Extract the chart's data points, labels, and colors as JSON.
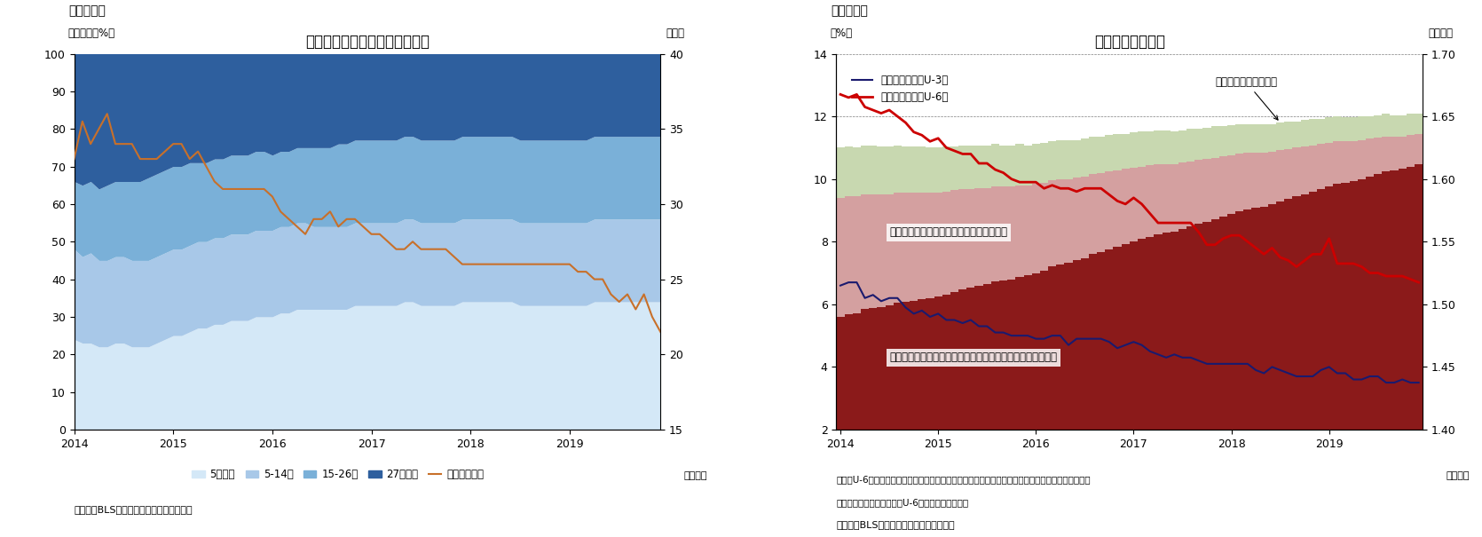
{
  "fig7": {
    "title": "失業期間の分布と平均失業期間",
    "ylabel_left": "（シェア、%）",
    "ylabel_right": "（週）",
    "xlabel": "（月次）",
    "header": "（図表７）",
    "source": "（資料）BLSよりニッセイ基礎研究所作成",
    "ylim_left": [
      0,
      100
    ],
    "ylim_right": [
      15,
      40
    ],
    "colors": {
      "under5": "#d4e8f7",
      "5to14": "#a8c8e8",
      "15to26": "#7ab0d8",
      "over27": "#2e5f9e",
      "avg_line": "#c8702a"
    },
    "legend_labels": [
      "5週未満",
      "5-14週",
      "15-26週",
      "27週以上",
      "平均（右軸）"
    ],
    "under5": [
      24,
      23,
      23,
      22,
      22,
      23,
      23,
      22,
      22,
      22,
      23,
      24,
      25,
      25,
      26,
      27,
      27,
      28,
      28,
      29,
      29,
      29,
      30,
      30,
      30,
      31,
      31,
      32,
      32,
      32,
      32,
      32,
      32,
      32,
      33,
      33,
      33,
      33,
      33,
      33,
      34,
      34,
      33,
      33,
      33,
      33,
      33,
      34,
      34,
      34,
      34,
      34,
      34,
      34,
      33,
      33,
      33,
      33,
      33,
      33,
      33,
      33,
      33,
      34,
      34,
      34,
      34,
      34,
      34,
      34,
      34,
      34
    ],
    "s5to14": [
      24,
      23,
      24,
      23,
      23,
      23,
      23,
      23,
      23,
      23,
      23,
      23,
      23,
      23,
      23,
      23,
      23,
      23,
      23,
      23,
      23,
      23,
      23,
      23,
      23,
      23,
      23,
      23,
      23,
      22,
      22,
      22,
      22,
      22,
      22,
      22,
      22,
      22,
      22,
      22,
      22,
      22,
      22,
      22,
      22,
      22,
      22,
      22,
      22,
      22,
      22,
      22,
      22,
      22,
      22,
      22,
      22,
      22,
      22,
      22,
      22,
      22,
      22,
      22,
      22,
      22,
      22,
      22,
      22,
      22,
      22,
      22
    ],
    "s15to26": [
      18,
      19,
      19,
      19,
      20,
      20,
      20,
      21,
      21,
      22,
      22,
      22,
      22,
      22,
      22,
      21,
      21,
      21,
      21,
      21,
      21,
      21,
      21,
      21,
      20,
      20,
      20,
      20,
      20,
      21,
      21,
      21,
      22,
      22,
      22,
      22,
      22,
      22,
      22,
      22,
      22,
      22,
      22,
      22,
      22,
      22,
      22,
      22,
      22,
      22,
      22,
      22,
      22,
      22,
      22,
      22,
      22,
      22,
      22,
      22,
      22,
      22,
      22,
      22,
      22,
      22,
      22,
      22,
      22,
      22,
      22,
      22
    ],
    "over27": [
      34,
      35,
      34,
      36,
      35,
      34,
      34,
      34,
      34,
      33,
      32,
      31,
      30,
      30,
      29,
      29,
      29,
      28,
      28,
      27,
      27,
      27,
      26,
      26,
      27,
      26,
      26,
      25,
      25,
      25,
      25,
      25,
      24,
      24,
      23,
      23,
      23,
      23,
      23,
      23,
      22,
      22,
      23,
      23,
      23,
      23,
      23,
      22,
      22,
      22,
      22,
      22,
      22,
      22,
      23,
      23,
      23,
      23,
      23,
      23,
      23,
      23,
      23,
      22,
      22,
      22,
      22,
      22,
      22,
      22,
      22,
      22
    ],
    "avg_weeks": [
      33.0,
      35.5,
      34.0,
      35.0,
      36.0,
      34.0,
      34.0,
      34.0,
      33.0,
      33.0,
      33.0,
      33.5,
      34.0,
      34.0,
      33.0,
      33.5,
      32.5,
      31.5,
      31.0,
      31.0,
      31.0,
      31.0,
      31.0,
      31.0,
      30.5,
      29.5,
      29.0,
      28.5,
      28.0,
      29.0,
      29.0,
      29.5,
      28.5,
      29.0,
      29.0,
      28.5,
      28.0,
      28.0,
      27.5,
      27.0,
      27.0,
      27.5,
      27.0,
      27.0,
      27.0,
      27.0,
      26.5,
      26.0,
      26.0,
      26.0,
      26.0,
      26.0,
      26.0,
      26.0,
      26.0,
      26.0,
      26.0,
      26.0,
      26.0,
      26.0,
      26.0,
      25.5,
      25.5,
      25.0,
      25.0,
      24.0,
      23.5,
      24.0,
      23.0,
      24.0,
      22.5,
      21.5
    ],
    "n_months": 72,
    "year_starts": [
      0,
      12,
      24,
      36,
      48,
      60
    ],
    "year_labels": [
      "2014",
      "2015",
      "2016",
      "2017",
      "2018",
      "2019"
    ]
  },
  "fig8": {
    "title": "広義失業率の推移",
    "ylabel_left": "（%）",
    "ylabel_right": "（億人）",
    "xlabel": "（月次）",
    "header": "（図表８）",
    "source": "（資料）BLSよりニッセイ基礎研究所作成",
    "note1": "（注）U-6＝（失業者＋周辺労働力＋経済的理由によるパートタイマー）／（労働力＋周辺労働力）",
    "note2": "　　周辺労働力は失業率（U-6）より逆算して推計",
    "ylim_left": [
      2,
      14
    ],
    "ylim_right": [
      1.4,
      1.7
    ],
    "colors": {
      "labor_force": "#8b1a1a",
      "part_timer": "#d4a0a0",
      "marginal": "#c8d8b0",
      "u3_line": "#1a1a6e",
      "u6_line": "#cc0000"
    },
    "legend_u3": "通常の失業率（U-3）",
    "legend_u6": "広義の失業率（U-6）",
    "annotation_marginal": "周辺労働人口（右軸）",
    "annotation_part": "経済的理由によるパートタイマー（右軸）",
    "annotation_labor": "労働力人口（経済的理由によるパートタイマー除く、右軸）",
    "labor_force": [
      1.49,
      1.492,
      1.493,
      1.496,
      1.497,
      1.498,
      1.499,
      1.501,
      1.502,
      1.503,
      1.504,
      1.505,
      1.506,
      1.508,
      1.51,
      1.512,
      1.513,
      1.515,
      1.516,
      1.518,
      1.519,
      1.52,
      1.522,
      1.523,
      1.525,
      1.527,
      1.53,
      1.532,
      1.533,
      1.535,
      1.537,
      1.54,
      1.542,
      1.544,
      1.546,
      1.548,
      1.55,
      1.552,
      1.554,
      1.556,
      1.557,
      1.558,
      1.56,
      1.562,
      1.564,
      1.566,
      1.568,
      1.57,
      1.572,
      1.574,
      1.576,
      1.577,
      1.578,
      1.58,
      1.582,
      1.584,
      1.586,
      1.588,
      1.59,
      1.592,
      1.594,
      1.596,
      1.597,
      1.598,
      1.6,
      1.602,
      1.604,
      1.606,
      1.607,
      1.608,
      1.61,
      1.612
    ],
    "part_timer": [
      0.095,
      0.094,
      0.093,
      0.092,
      0.091,
      0.09,
      0.089,
      0.088,
      0.087,
      0.086,
      0.085,
      0.084,
      0.083,
      0.082,
      0.081,
      0.08,
      0.079,
      0.078,
      0.077,
      0.076,
      0.075,
      0.074,
      0.073,
      0.072,
      0.071,
      0.07,
      0.069,
      0.068,
      0.067,
      0.066,
      0.065,
      0.064,
      0.063,
      0.062,
      0.061,
      0.06,
      0.059,
      0.058,
      0.057,
      0.056,
      0.055,
      0.054,
      0.053,
      0.052,
      0.051,
      0.05,
      0.049,
      0.048,
      0.047,
      0.046,
      0.045,
      0.044,
      0.043,
      0.042,
      0.041,
      0.04,
      0.039,
      0.038,
      0.037,
      0.036,
      0.035,
      0.034,
      0.033,
      0.032,
      0.031,
      0.03,
      0.029,
      0.028,
      0.027,
      0.026,
      0.025,
      0.024
    ],
    "marginal": [
      0.04,
      0.04,
      0.039,
      0.039,
      0.039,
      0.038,
      0.038,
      0.038,
      0.037,
      0.037,
      0.037,
      0.036,
      0.036,
      0.036,
      0.035,
      0.035,
      0.035,
      0.034,
      0.034,
      0.034,
      0.033,
      0.033,
      0.033,
      0.032,
      0.032,
      0.032,
      0.031,
      0.031,
      0.031,
      0.03,
      0.03,
      0.03,
      0.029,
      0.029,
      0.029,
      0.028,
      0.028,
      0.028,
      0.027,
      0.027,
      0.027,
      0.026,
      0.026,
      0.026,
      0.025,
      0.025,
      0.025,
      0.024,
      0.024,
      0.024,
      0.023,
      0.023,
      0.023,
      0.022,
      0.022,
      0.022,
      0.021,
      0.021,
      0.021,
      0.02,
      0.02,
      0.02,
      0.019,
      0.019,
      0.019,
      0.018,
      0.018,
      0.018,
      0.017,
      0.017,
      0.017,
      0.016
    ],
    "u3": [
      6.6,
      6.7,
      6.7,
      6.2,
      6.3,
      6.1,
      6.2,
      6.2,
      5.9,
      5.7,
      5.8,
      5.6,
      5.7,
      5.5,
      5.5,
      5.4,
      5.5,
      5.3,
      5.3,
      5.1,
      5.1,
      5.0,
      5.0,
      5.0,
      4.9,
      4.9,
      5.0,
      5.0,
      4.7,
      4.9,
      4.9,
      4.9,
      4.9,
      4.8,
      4.6,
      4.7,
      4.8,
      4.7,
      4.5,
      4.4,
      4.3,
      4.4,
      4.3,
      4.3,
      4.2,
      4.1,
      4.1,
      4.1,
      4.1,
      4.1,
      4.1,
      3.9,
      3.8,
      4.0,
      3.9,
      3.8,
      3.7,
      3.7,
      3.7,
      3.9,
      4.0,
      3.8,
      3.8,
      3.6,
      3.6,
      3.7,
      3.7,
      3.5,
      3.5,
      3.6,
      3.5,
      3.5
    ],
    "u6": [
      12.7,
      12.6,
      12.7,
      12.3,
      12.2,
      12.1,
      12.2,
      12.0,
      11.8,
      11.5,
      11.4,
      11.2,
      11.3,
      11.0,
      10.9,
      10.8,
      10.8,
      10.5,
      10.5,
      10.3,
      10.2,
      10.0,
      9.9,
      9.9,
      9.9,
      9.7,
      9.8,
      9.7,
      9.7,
      9.6,
      9.7,
      9.7,
      9.7,
      9.5,
      9.3,
      9.2,
      9.4,
      9.2,
      8.9,
      8.6,
      8.6,
      8.6,
      8.6,
      8.6,
      8.3,
      7.9,
      7.9,
      8.1,
      8.2,
      8.2,
      8.0,
      7.8,
      7.6,
      7.8,
      7.5,
      7.4,
      7.2,
      7.4,
      7.6,
      7.6,
      8.1,
      7.3,
      7.3,
      7.3,
      7.2,
      7.0,
      7.0,
      6.9,
      6.9,
      6.9,
      6.8,
      6.7
    ],
    "n_months": 72,
    "year_starts": [
      0,
      12,
      24,
      36,
      48,
      60
    ],
    "year_labels": [
      "2014",
      "2015",
      "2016",
      "2017",
      "2018",
      "2019"
    ]
  }
}
